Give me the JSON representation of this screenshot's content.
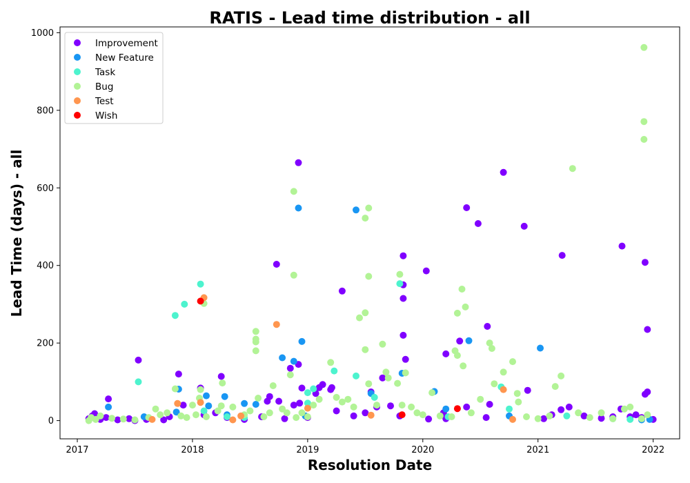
{
  "chart_data": {
    "type": "scatter",
    "title": "RATIS - Lead time distribution - all",
    "xlabel": "Resolution Date",
    "ylabel": "Lead Time (days) - all",
    "xlim": [
      2016.85,
      2022.23
    ],
    "ylim": [
      -47,
      1015
    ],
    "xticks": [
      2017,
      2018,
      2019,
      2020,
      2021,
      2022
    ],
    "xtick_labels": [
      "2017",
      "2018",
      "2019",
      "2020",
      "2021",
      "2022"
    ],
    "yticks": [
      0,
      200,
      400,
      600,
      800,
      1000
    ],
    "ytick_labels": [
      "0",
      "200",
      "400",
      "600",
      "800",
      "1000"
    ],
    "legend_position": "top-left",
    "series": [
      {
        "name": "Improvement",
        "color": "#8000ff",
        "points": [
          [
            2017.1,
            5
          ],
          [
            2017.13,
            12
          ],
          [
            2017.15,
            18
          ],
          [
            2017.2,
            3
          ],
          [
            2017.25,
            8
          ],
          [
            2017.27,
            56
          ],
          [
            2017.35,
            2
          ],
          [
            2017.45,
            5
          ],
          [
            2017.5,
            0
          ],
          [
            2017.53,
            156
          ],
          [
            2017.6,
            3
          ],
          [
            2017.75,
            2
          ],
          [
            2017.8,
            10
          ],
          [
            2017.88,
            120
          ],
          [
            2017.92,
            40
          ],
          [
            2018.07,
            84
          ],
          [
            2018.1,
            15
          ],
          [
            2018.2,
            20
          ],
          [
            2018.25,
            114
          ],
          [
            2018.3,
            8
          ],
          [
            2018.45,
            3
          ],
          [
            2018.6,
            10
          ],
          [
            2018.65,
            50
          ],
          [
            2018.67,
            62
          ],
          [
            2018.73,
            403
          ],
          [
            2018.75,
            50
          ],
          [
            2018.8,
            5
          ],
          [
            2018.85,
            135
          ],
          [
            2018.88,
            40
          ],
          [
            2018.92,
            145
          ],
          [
            2018.92,
            665
          ],
          [
            2018.93,
            45
          ],
          [
            2018.95,
            84
          ],
          [
            2019.0,
            8
          ],
          [
            2019.07,
            70
          ],
          [
            2019.1,
            85
          ],
          [
            2019.13,
            93
          ],
          [
            2019.2,
            80
          ],
          [
            2019.21,
            85
          ],
          [
            2019.25,
            25
          ],
          [
            2019.3,
            334
          ],
          [
            2019.4,
            12
          ],
          [
            2019.5,
            20
          ],
          [
            2019.55,
            74
          ],
          [
            2019.6,
            35
          ],
          [
            2019.65,
            110
          ],
          [
            2019.72,
            38
          ],
          [
            2019.8,
            12
          ],
          [
            2019.83,
            425
          ],
          [
            2019.83,
            350
          ],
          [
            2019.83,
            315
          ],
          [
            2019.83,
            220
          ],
          [
            2019.85,
            158
          ],
          [
            2020.03,
            386
          ],
          [
            2020.05,
            4
          ],
          [
            2020.18,
            20
          ],
          [
            2020.2,
            172
          ],
          [
            2020.2,
            5
          ],
          [
            2020.32,
            205
          ],
          [
            2020.38,
            35
          ],
          [
            2020.38,
            549
          ],
          [
            2020.48,
            508
          ],
          [
            2020.55,
            8
          ],
          [
            2020.56,
            243
          ],
          [
            2020.58,
            42
          ],
          [
            2020.7,
            640
          ],
          [
            2020.88,
            501
          ],
          [
            2020.91,
            78
          ],
          [
            2021.05,
            5
          ],
          [
            2021.12,
            15
          ],
          [
            2021.2,
            28
          ],
          [
            2021.21,
            426
          ],
          [
            2021.27,
            35
          ],
          [
            2021.4,
            12
          ],
          [
            2021.55,
            6
          ],
          [
            2021.65,
            10
          ],
          [
            2021.72,
            30
          ],
          [
            2021.73,
            450
          ],
          [
            2021.8,
            10
          ],
          [
            2021.85,
            15
          ],
          [
            2021.9,
            8
          ],
          [
            2021.93,
            408
          ],
          [
            2021.93,
            68
          ],
          [
            2021.95,
            235
          ],
          [
            2021.95,
            74
          ],
          [
            2022.0,
            3
          ]
        ]
      },
      {
        "name": "New Feature",
        "color": "#1996f3",
        "points": [
          [
            2017.27,
            35
          ],
          [
            2017.58,
            10
          ],
          [
            2017.86,
            22
          ],
          [
            2017.88,
            81
          ],
          [
            2018.12,
            64
          ],
          [
            2018.14,
            38
          ],
          [
            2018.28,
            62
          ],
          [
            2018.3,
            15
          ],
          [
            2018.45,
            44
          ],
          [
            2018.55,
            42
          ],
          [
            2018.78,
            162
          ],
          [
            2018.88,
            153
          ],
          [
            2018.92,
            548
          ],
          [
            2018.95,
            204
          ],
          [
            2018.98,
            12
          ],
          [
            2019.42,
            543
          ],
          [
            2019.55,
            70
          ],
          [
            2019.82,
            122
          ],
          [
            2020.1,
            75
          ],
          [
            2020.2,
            30
          ],
          [
            2020.4,
            206
          ],
          [
            2020.75,
            12
          ],
          [
            2021.02,
            187
          ],
          [
            2021.9,
            2
          ],
          [
            2021.97,
            3
          ]
        ]
      },
      {
        "name": "Task",
        "color": "#4df3ce",
        "points": [
          [
            2017.53,
            100
          ],
          [
            2017.85,
            271
          ],
          [
            2017.93,
            300
          ],
          [
            2018.07,
            352
          ],
          [
            2018.1,
            25
          ],
          [
            2018.3,
            10
          ],
          [
            2018.45,
            8
          ],
          [
            2019.0,
            72
          ],
          [
            2019.0,
            45
          ],
          [
            2019.05,
            82
          ],
          [
            2019.23,
            128
          ],
          [
            2019.42,
            115
          ],
          [
            2019.58,
            60
          ],
          [
            2019.8,
            353
          ],
          [
            2020.22,
            10
          ],
          [
            2020.68,
            87
          ],
          [
            2020.75,
            30
          ],
          [
            2021.25,
            12
          ],
          [
            2021.65,
            5
          ],
          [
            2021.8,
            3
          ]
        ]
      },
      {
        "name": "Bug",
        "color": "#b2f396",
        "points": [
          [
            2017.1,
            0
          ],
          [
            2017.12,
            8
          ],
          [
            2017.16,
            3
          ],
          [
            2017.2,
            12
          ],
          [
            2017.3,
            6
          ],
          [
            2017.4,
            4
          ],
          [
            2017.5,
            2
          ],
          [
            2017.62,
            8
          ],
          [
            2017.68,
            30
          ],
          [
            2017.72,
            15
          ],
          [
            2017.78,
            20
          ],
          [
            2017.85,
            82
          ],
          [
            2017.9,
            12
          ],
          [
            2017.95,
            8
          ],
          [
            2018.0,
            40
          ],
          [
            2018.03,
            15
          ],
          [
            2018.06,
            58
          ],
          [
            2018.07,
            80
          ],
          [
            2018.1,
            302
          ],
          [
            2018.12,
            10
          ],
          [
            2018.22,
            25
          ],
          [
            2018.25,
            38
          ],
          [
            2018.26,
            97
          ],
          [
            2018.35,
            35
          ],
          [
            2018.45,
            15
          ],
          [
            2018.5,
            25
          ],
          [
            2018.55,
            230
          ],
          [
            2018.55,
            210
          ],
          [
            2018.55,
            203
          ],
          [
            2018.55,
            180
          ],
          [
            2018.57,
            58
          ],
          [
            2018.62,
            10
          ],
          [
            2018.67,
            20
          ],
          [
            2018.7,
            90
          ],
          [
            2018.78,
            30
          ],
          [
            2018.82,
            20
          ],
          [
            2018.85,
            118
          ],
          [
            2018.88,
            591
          ],
          [
            2018.88,
            375
          ],
          [
            2018.9,
            8
          ],
          [
            2018.95,
            20
          ],
          [
            2019.0,
            10
          ],
          [
            2019.05,
            40
          ],
          [
            2019.1,
            55
          ],
          [
            2019.2,
            150
          ],
          [
            2019.25,
            60
          ],
          [
            2019.3,
            48
          ],
          [
            2019.35,
            55
          ],
          [
            2019.4,
            35
          ],
          [
            2019.45,
            265
          ],
          [
            2019.5,
            522
          ],
          [
            2019.5,
            278
          ],
          [
            2019.5,
            183
          ],
          [
            2019.53,
            548
          ],
          [
            2019.53,
            372
          ],
          [
            2019.53,
            95
          ],
          [
            2019.6,
            40
          ],
          [
            2019.65,
            197
          ],
          [
            2019.68,
            125
          ],
          [
            2019.7,
            110
          ],
          [
            2019.78,
            96
          ],
          [
            2019.8,
            377
          ],
          [
            2019.82,
            40
          ],
          [
            2019.85,
            123
          ],
          [
            2019.9,
            35
          ],
          [
            2019.95,
            20
          ],
          [
            2020.0,
            15
          ],
          [
            2020.08,
            72
          ],
          [
            2020.15,
            12
          ],
          [
            2020.25,
            10
          ],
          [
            2020.28,
            180
          ],
          [
            2020.3,
            277
          ],
          [
            2020.3,
            168
          ],
          [
            2020.34,
            339
          ],
          [
            2020.35,
            141
          ],
          [
            2020.37,
            293
          ],
          [
            2020.42,
            20
          ],
          [
            2020.5,
            55
          ],
          [
            2020.58,
            200
          ],
          [
            2020.6,
            186
          ],
          [
            2020.62,
            95
          ],
          [
            2020.7,
            125
          ],
          [
            2020.78,
            152
          ],
          [
            2020.82,
            70
          ],
          [
            2020.83,
            48
          ],
          [
            2020.9,
            10
          ],
          [
            2021.0,
            5
          ],
          [
            2021.1,
            12
          ],
          [
            2021.15,
            88
          ],
          [
            2021.2,
            115
          ],
          [
            2021.3,
            650
          ],
          [
            2021.35,
            20
          ],
          [
            2021.45,
            8
          ],
          [
            2021.55,
            20
          ],
          [
            2021.65,
            5
          ],
          [
            2021.75,
            30
          ],
          [
            2021.8,
            35
          ],
          [
            2021.9,
            5
          ],
          [
            2021.92,
            962
          ],
          [
            2021.92,
            771
          ],
          [
            2021.92,
            725
          ],
          [
            2021.95,
            15
          ]
        ]
      },
      {
        "name": "Test",
        "color": "#ff964f",
        "points": [
          [
            2017.65,
            3
          ],
          [
            2017.87,
            44
          ],
          [
            2018.07,
            47
          ],
          [
            2018.1,
            317
          ],
          [
            2018.35,
            2
          ],
          [
            2018.42,
            12
          ],
          [
            2018.73,
            248
          ],
          [
            2019.0,
            32
          ],
          [
            2019.55,
            14
          ],
          [
            2020.7,
            80
          ],
          [
            2020.78,
            3
          ]
        ]
      },
      {
        "name": "Wish",
        "color": "#ff0000",
        "points": [
          [
            2018.07,
            308
          ],
          [
            2019.82,
            15
          ],
          [
            2020.3,
            31
          ]
        ]
      }
    ]
  }
}
